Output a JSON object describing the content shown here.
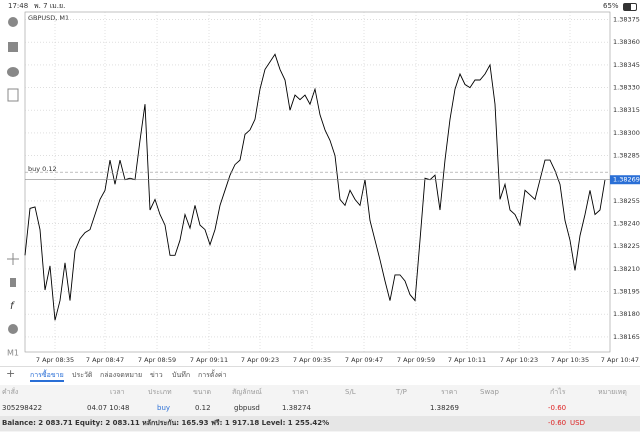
{
  "status_bar": {
    "time": "17:48",
    "date": "พ. 7 เม.ย.",
    "battery": "65%"
  },
  "chart_data": {
    "type": "line",
    "title": "GBPUSD, M1",
    "color": "#000000",
    "values": [
      1.38219,
      1.3825,
      1.38251,
      1.38236,
      1.38196,
      1.38212,
      1.38176,
      1.38189,
      1.38214,
      1.38189,
      1.38222,
      1.3823,
      1.38234,
      1.38236,
      1.38246,
      1.38256,
      1.38262,
      1.38282,
      1.38266,
      1.38282,
      1.38269,
      1.3827,
      1.38269,
      1.38295,
      1.38319,
      1.38249,
      1.38256,
      1.38246,
      1.38239,
      1.38219,
      1.38219,
      1.38229,
      1.38246,
      1.38237,
      1.38252,
      1.38239,
      1.38236,
      1.38226,
      1.38236,
      1.38252,
      1.38262,
      1.38272,
      1.38279,
      1.38282,
      1.38299,
      1.38302,
      1.38309,
      1.38329,
      1.38342,
      1.38347,
      1.38352,
      1.38342,
      1.38335,
      1.38315,
      1.38325,
      1.38322,
      1.38325,
      1.38319,
      1.38329,
      1.38312,
      1.38302,
      1.38295,
      1.38285,
      1.38256,
      1.38252,
      1.38262,
      1.38256,
      1.38252,
      1.38269,
      1.38242,
      1.38229,
      1.38216,
      1.38202,
      1.38189,
      1.38206,
      1.38206,
      1.38202,
      1.38193,
      1.38189,
      1.38229,
      1.3827,
      1.38269,
      1.38272,
      1.38249,
      1.38282,
      1.38309,
      1.38329,
      1.38339,
      1.38332,
      1.3833,
      1.38335,
      1.38335,
      1.38339,
      1.38345,
      1.38319,
      1.38256,
      1.38266,
      1.38249,
      1.38246,
      1.38239,
      1.38262,
      1.38259,
      1.38256,
      1.38269,
      1.38282,
      1.38282,
      1.38275,
      1.38266,
      1.38242,
      1.38229,
      1.38209,
      1.38232,
      1.38246,
      1.38262,
      1.38246,
      1.38249,
      1.38269
    ],
    "xlim": [
      0,
      117
    ],
    "xticks": [
      {
        "value": 6,
        "label": "7 Apr 08:35"
      },
      {
        "value": 16,
        "label": "7 Apr 08:47"
      },
      {
        "value": 26.4,
        "label": "7 Apr 08:59"
      },
      {
        "value": 36.8,
        "label": "7 Apr 09:11"
      },
      {
        "value": 47,
        "label": "7 Apr 09:23"
      },
      {
        "value": 57.4,
        "label": "7 Apr 09:35"
      },
      {
        "value": 67.8,
        "label": "7 Apr 09:47"
      },
      {
        "value": 78.2,
        "label": "7 Apr 09:59"
      },
      {
        "value": 88.4,
        "label": "7 Apr 10:11"
      },
      {
        "value": 98.8,
        "label": "7 Apr 10:23"
      },
      {
        "value": 109,
        "label": "7 Apr 10:35"
      },
      {
        "value": 119,
        "label": "7 Apr 10:47"
      }
    ],
    "ylim": [
      1.38155,
      1.3838
    ],
    "yticks": [
      {
        "value": 1.38375,
        "label": "1.38375"
      },
      {
        "value": 1.3836,
        "label": "1.38360"
      },
      {
        "value": 1.38345,
        "label": "1.38345"
      },
      {
        "value": 1.3833,
        "label": "1.38330"
      },
      {
        "value": 1.38315,
        "label": "1.38315"
      },
      {
        "value": 1.383,
        "label": "1.38300"
      },
      {
        "value": 1.38285,
        "label": "1.38285"
      },
      {
        "value": 1.38255,
        "label": "1.38255"
      },
      {
        "value": 1.3824,
        "label": "1.38240"
      },
      {
        "value": 1.38225,
        "label": "1.38225"
      },
      {
        "value": 1.3821,
        "label": "1.38210"
      },
      {
        "value": 1.38195,
        "label": "1.38195"
      },
      {
        "value": 1.3818,
        "label": "1.38180"
      },
      {
        "value": 1.38165,
        "label": "1.38165"
      }
    ],
    "grid": true,
    "annotation": {
      "label": "buy 0.12",
      "value": 1.38274
    },
    "current_price": 1.38269
  },
  "terminal": {
    "tabs": [
      "การซื้อขาย",
      "ประวัติ",
      "กล่องจดหมาย",
      "ข่าว",
      "บันทึก",
      "การตั้งค่า"
    ],
    "columns": [
      "คำสั่ง",
      "เวลา",
      "ประเภท",
      "ขนาด",
      "สัญลักษณ์",
      "ราคา",
      "S/L",
      "T/P",
      "ราคา",
      "Swap",
      "กำไร",
      "หมายเหตุ"
    ],
    "row": [
      "305298422",
      "04.07 10:48",
      "buy",
      "0.12",
      "gbpusd",
      "1.38274",
      "1.38269",
      "-0.60"
    ],
    "summary": {
      "text": "Balance: 2 083.71 Equity: 2 083.11 หลักประกัน: 165.93 ฟรี: 1 917.18 Level: 1 255.42%",
      "profit": "-0.60",
      "currency": "USD"
    }
  }
}
